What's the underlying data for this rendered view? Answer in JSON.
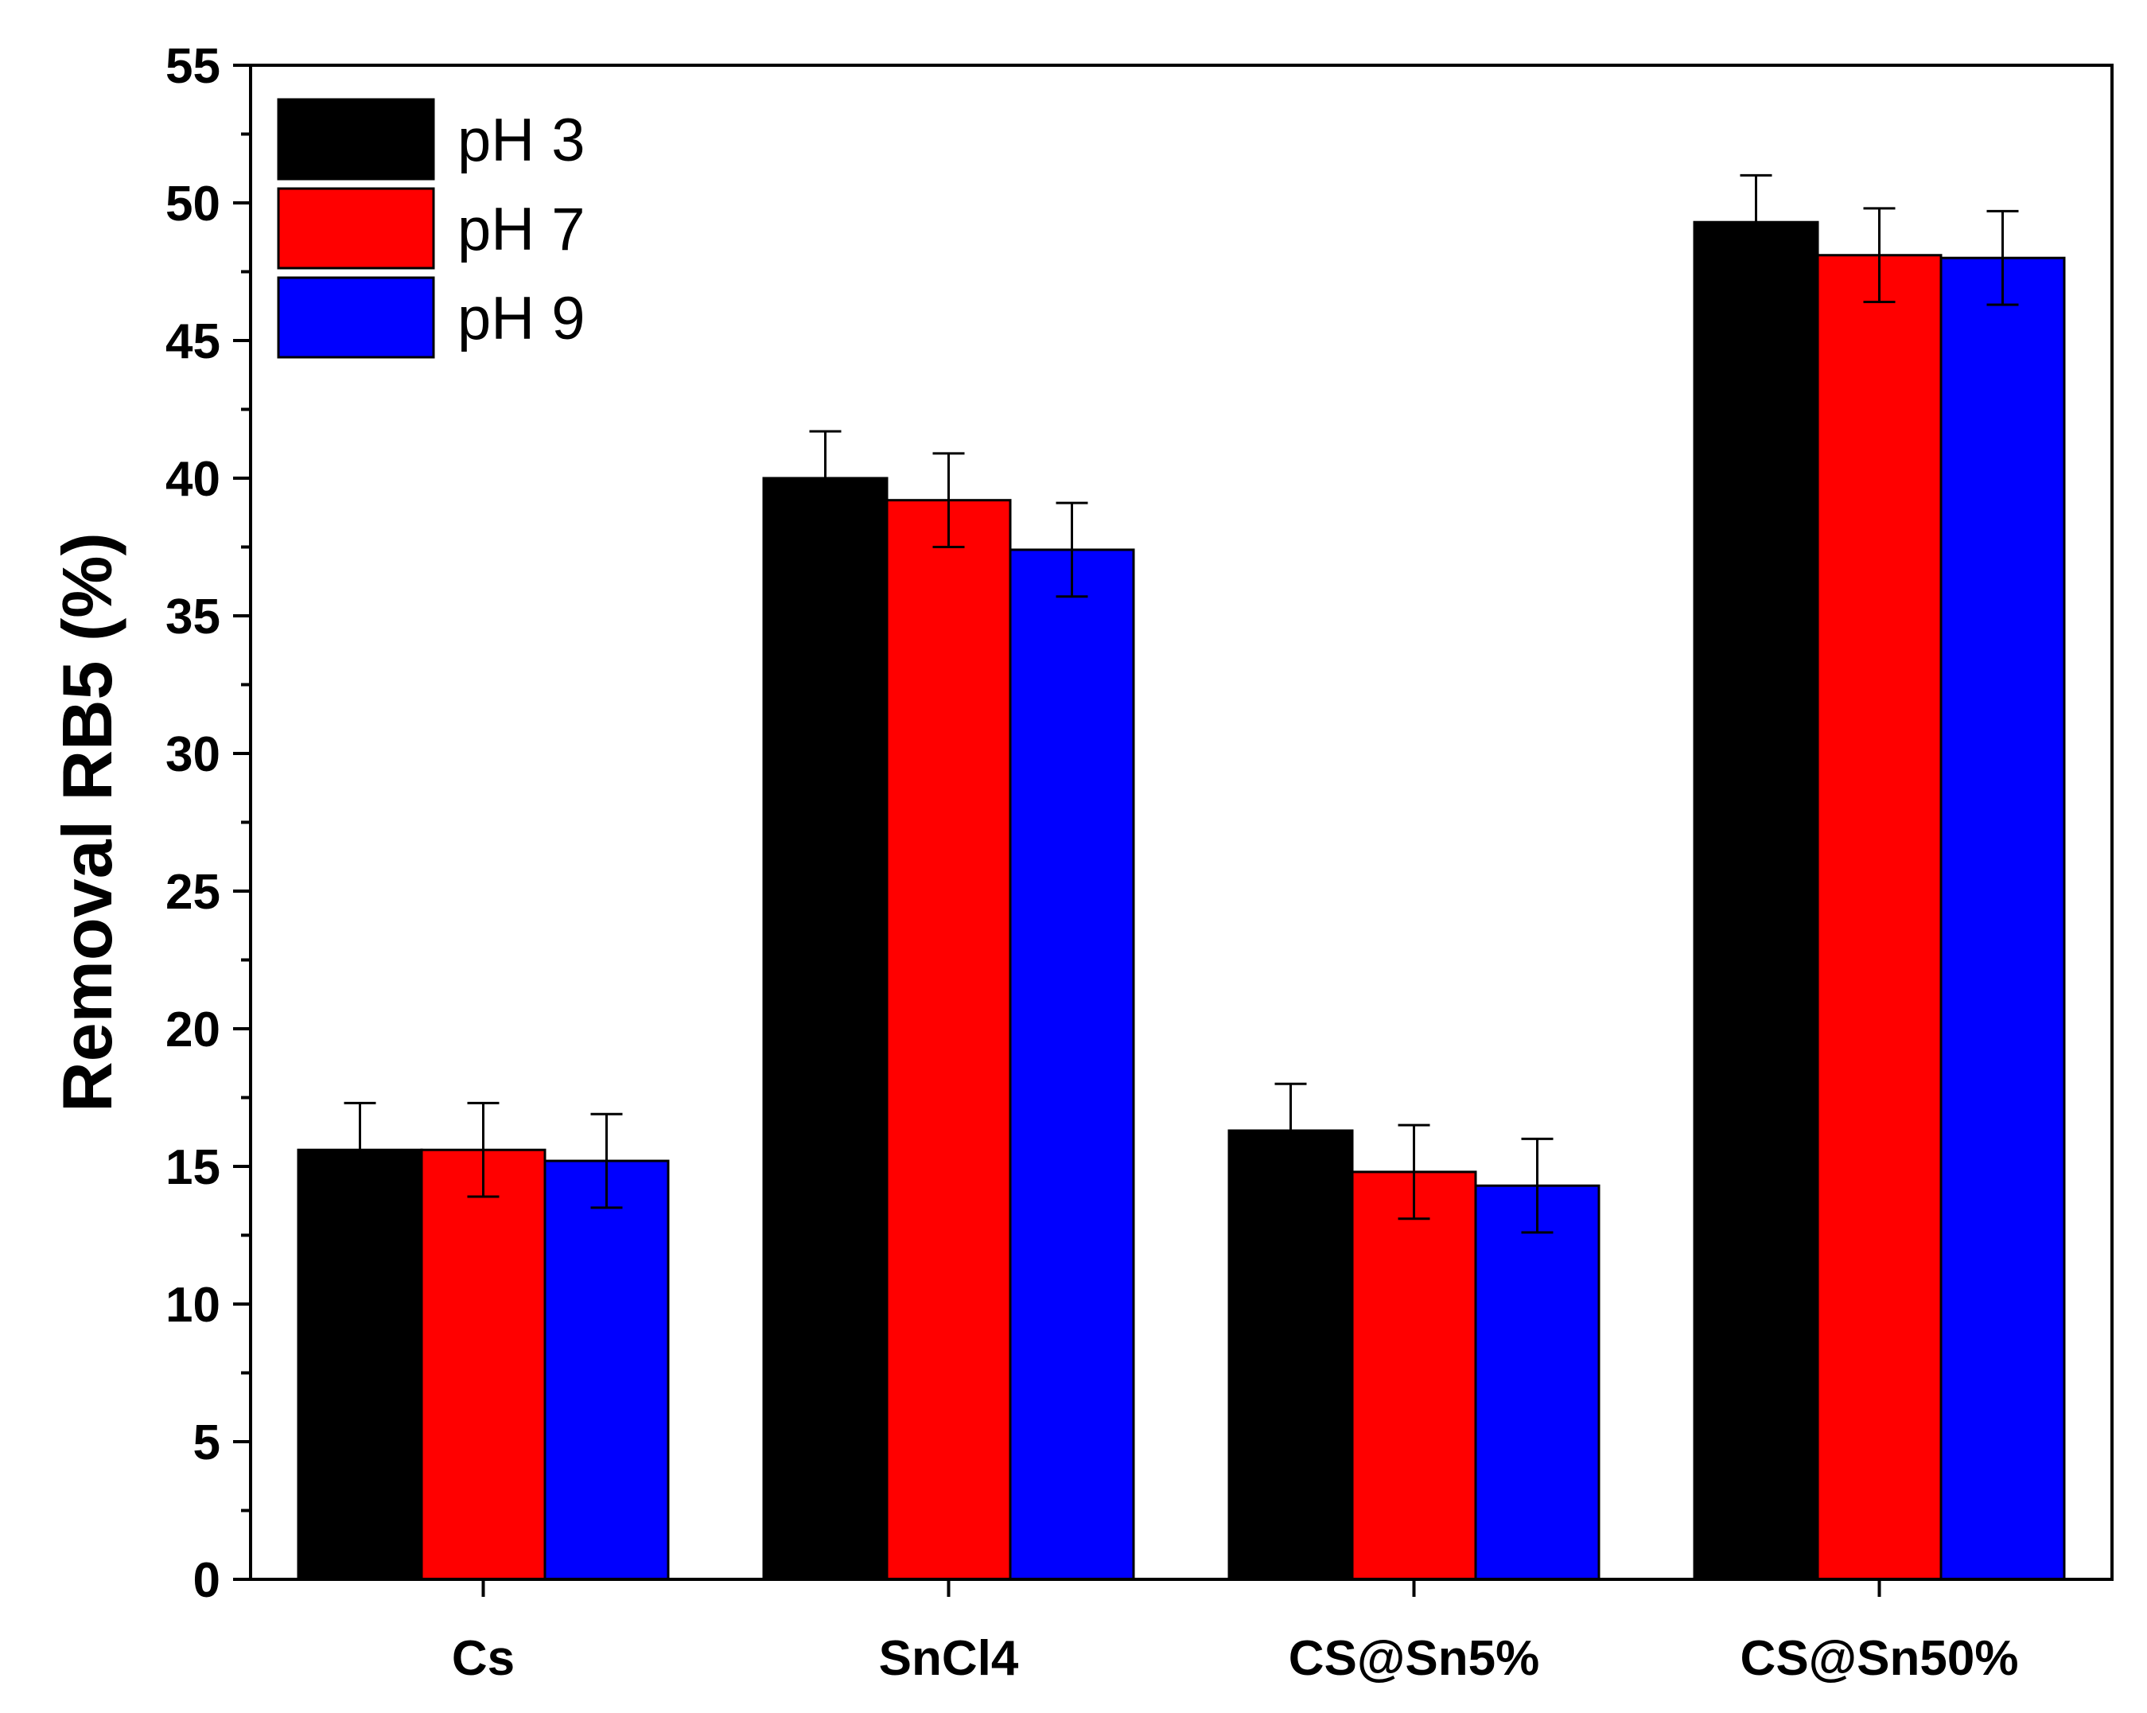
{
  "chart_data": {
    "type": "bar",
    "title": "",
    "xlabel": "",
    "ylabel": "Removal RB5 (%)",
    "ylim": [
      0,
      55
    ],
    "yticks": [
      0,
      5,
      10,
      15,
      20,
      25,
      30,
      35,
      40,
      45,
      50,
      55
    ],
    "categories": [
      "Cs",
      "SnCl4",
      "CS@Sn5%",
      "CS@Sn50%"
    ],
    "series": [
      {
        "name": "pH 3",
        "color": "#000000",
        "values": [
          15.6,
          40.0,
          16.3,
          49.3
        ],
        "errors": [
          1.7,
          1.7,
          1.7,
          1.7
        ]
      },
      {
        "name": "pH 7",
        "color": "#ff0000",
        "values": [
          15.6,
          39.2,
          14.8,
          48.1
        ],
        "errors": [
          1.7,
          1.7,
          1.7,
          1.7
        ]
      },
      {
        "name": "pH 9",
        "color": "#0000ff",
        "values": [
          15.2,
          37.4,
          14.3,
          48.0
        ],
        "errors": [
          1.7,
          1.7,
          1.7,
          1.7
        ]
      }
    ],
    "legend_position": "top-left",
    "grid": false
  }
}
